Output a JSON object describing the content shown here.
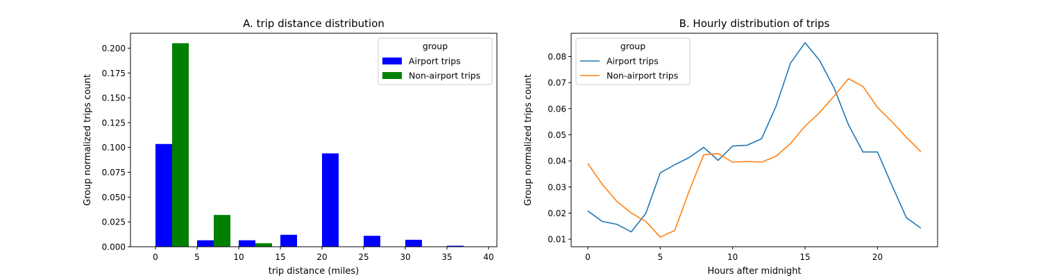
{
  "chart_data": [
    {
      "type": "bar",
      "title": "A. trip distance distribution",
      "xlabel": "trip distance (miles)",
      "ylabel": "Group normalized trips count",
      "xlim": [
        -3,
        41
      ],
      "ylim": [
        0,
        0.215
      ],
      "xticks": [
        0,
        5,
        10,
        15,
        20,
        25,
        30,
        35,
        40
      ],
      "xtick_labels": [
        "0",
        "5",
        "10",
        "15",
        "20",
        "25",
        "30",
        "35",
        "40"
      ],
      "yticks": [
        0,
        0.025,
        0.05,
        0.075,
        0.1,
        0.125,
        0.15,
        0.175,
        0.2
      ],
      "ytick_labels": [
        "0.000",
        "0.025",
        "0.050",
        "0.075",
        "0.100",
        "0.125",
        "0.150",
        "0.175",
        "0.200"
      ],
      "grid": false,
      "legend": {
        "title": "group",
        "placement": "top-right"
      },
      "bin_starts": [
        0,
        5,
        10,
        15,
        20,
        25,
        30,
        35
      ],
      "series": [
        {
          "name": "Airport trips",
          "color": "#0000ff",
          "values": [
            0.1035,
            0.0065,
            0.0065,
            0.012,
            0.094,
            0.011,
            0.007,
            0.001
          ]
        },
        {
          "name": "Non-airport trips",
          "color": "#008000",
          "values": [
            0.205,
            0.032,
            0.0035,
            0.0002,
            0.0001,
            0.0001,
            0.0,
            0.0
          ]
        }
      ]
    },
    {
      "type": "line",
      "title": "B. Hourly distribution of trips",
      "xlabel": "Hours after midnight",
      "ylabel": "Group normalized trips count",
      "xlim": [
        -1.15,
        24.15
      ],
      "ylim": [
        0.0071,
        0.0889
      ],
      "xticks": [
        0,
        5,
        10,
        15,
        20
      ],
      "xtick_labels": [
        "0",
        "5",
        "10",
        "15",
        "20"
      ],
      "yticks": [
        0.01,
        0.02,
        0.03,
        0.04,
        0.05,
        0.06,
        0.07,
        0.08
      ],
      "ytick_labels": [
        "0.01",
        "0.02",
        "0.03",
        "0.04",
        "0.05",
        "0.06",
        "0.07",
        "0.08"
      ],
      "grid": false,
      "legend": {
        "title": "group",
        "placement": "top-left"
      },
      "x": [
        0,
        1,
        2,
        3,
        4,
        5,
        6,
        7,
        8,
        9,
        10,
        11,
        12,
        13,
        14,
        15,
        16,
        17,
        18,
        19,
        20,
        21,
        22,
        23
      ],
      "series": [
        {
          "name": "Airport trips",
          "color": "#1f77b4",
          "values": [
            0.0208,
            0.0168,
            0.0157,
            0.0128,
            0.0198,
            0.0354,
            0.0385,
            0.0413,
            0.0452,
            0.0402,
            0.0457,
            0.046,
            0.0485,
            0.061,
            0.0775,
            0.0853,
            0.0785,
            0.068,
            0.0538,
            0.0434,
            0.0434,
            0.0306,
            0.0182,
            0.0142
          ]
        },
        {
          "name": "Non-airport trips",
          "color": "#ff7f0e",
          "values": [
            0.039,
            0.031,
            0.0245,
            0.02,
            0.0168,
            0.0108,
            0.0133,
            0.0285,
            0.0423,
            0.0428,
            0.0395,
            0.0398,
            0.0395,
            0.0418,
            0.0467,
            0.0533,
            0.0585,
            0.0648,
            0.0715,
            0.0685,
            0.0605,
            0.055,
            0.049,
            0.0435
          ]
        }
      ]
    }
  ]
}
